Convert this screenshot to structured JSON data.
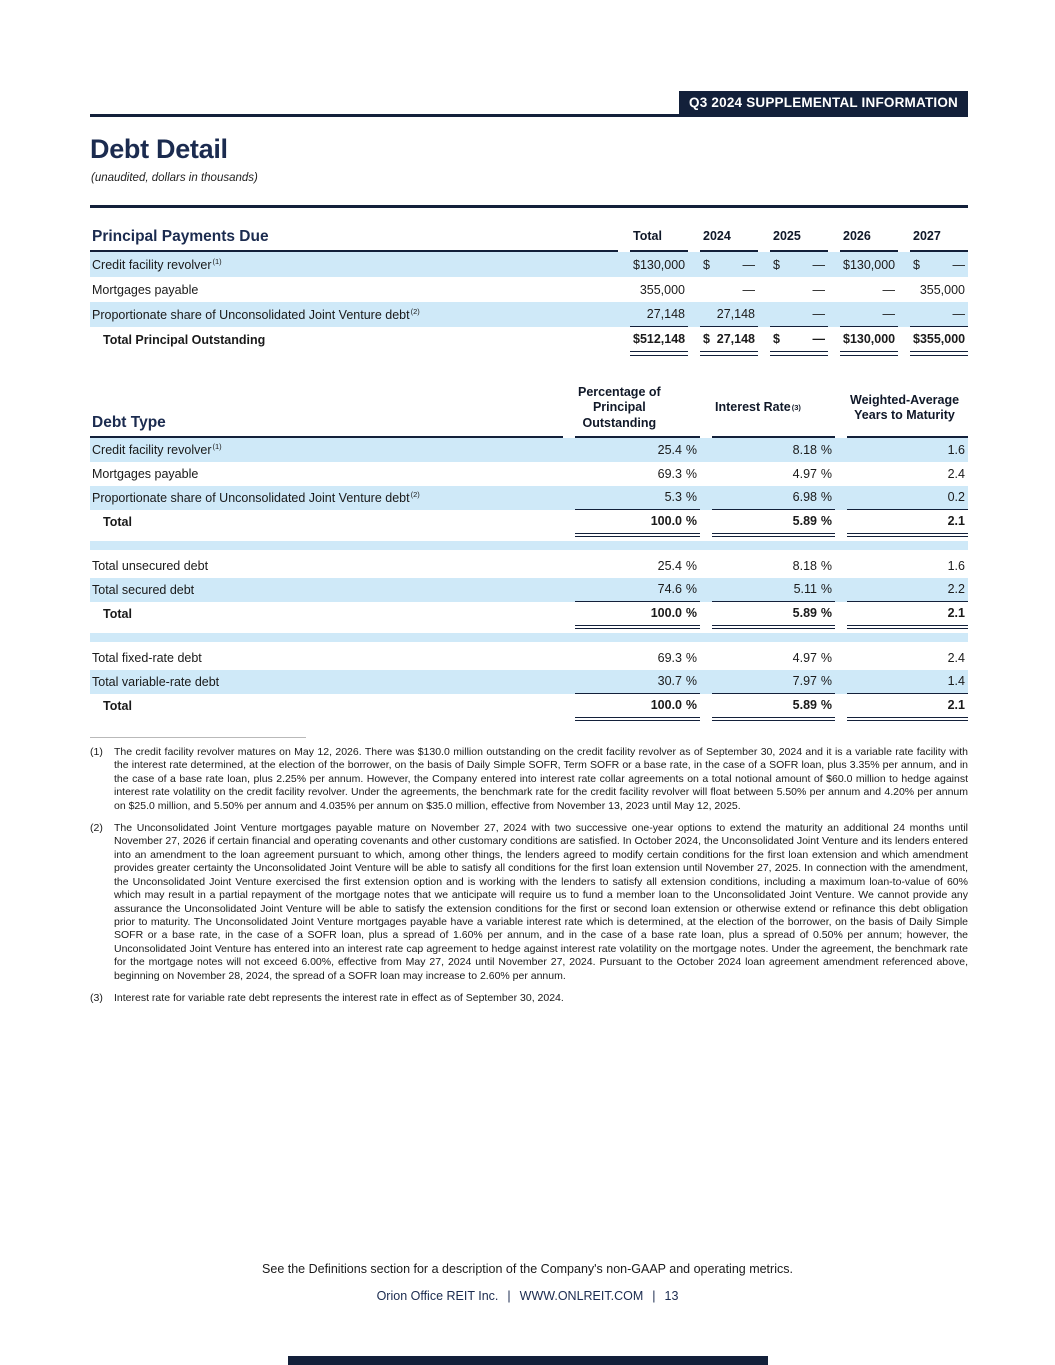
{
  "page": {
    "header_badge": "Q3 2024 SUPPLEMENTAL INFORMATION",
    "title": "Debt Detail",
    "subtitle": "(unaudited, dollars in thousands)"
  },
  "principal_payments": {
    "title": "Principal Payments Due",
    "columns": [
      "Total",
      "2024",
      "2025",
      "2026",
      "2027"
    ],
    "rows": [
      {
        "label": "Credit facility revolver",
        "footnote": "(1)",
        "shaded": true,
        "cells": [
          [
            "$",
            "130,000"
          ],
          [
            "$",
            "—"
          ],
          [
            "$",
            "—"
          ],
          [
            "$",
            "130,000"
          ],
          [
            "$",
            "—"
          ]
        ]
      },
      {
        "label": "Mortgages payable",
        "footnote": "",
        "shaded": false,
        "cells": [
          [
            "",
            "355,000"
          ],
          [
            "",
            "—"
          ],
          [
            "",
            "—"
          ],
          [
            "",
            "—"
          ],
          [
            "",
            "355,000"
          ]
        ]
      },
      {
        "label": "Proportionate share of Unconsolidated Joint Venture debt",
        "footnote": "(2)",
        "shaded": true,
        "cells": [
          [
            "",
            "27,148"
          ],
          [
            "",
            "27,148"
          ],
          [
            "",
            "—"
          ],
          [
            "",
            "—"
          ],
          [
            "",
            "—"
          ]
        ]
      }
    ],
    "total_row": {
      "label": "Total Principal Outstanding",
      "cells": [
        [
          "$",
          "512,148"
        ],
        [
          "$",
          "27,148"
        ],
        [
          "$",
          "—"
        ],
        [
          "$",
          "130,000"
        ],
        [
          "$",
          "355,000"
        ]
      ]
    }
  },
  "debt_type": {
    "title": "Debt Type",
    "columns": [
      "Percentage of\nPrincipal\nOutstanding",
      "Interest Rate",
      "Weighted-Average\nYears to Maturity"
    ],
    "interest_rate_sup": "(3)",
    "sections": [
      {
        "rows": [
          {
            "label": "Credit facility revolver",
            "sup": "(1)",
            "pct": "25.4",
            "rate": "8.18",
            "years": "1.6",
            "shaded": true
          },
          {
            "label": "Mortgages payable",
            "sup": "",
            "pct": "69.3",
            "rate": "4.97",
            "years": "2.4",
            "shaded": false
          },
          {
            "label": "Proportionate share of Unconsolidated Joint Venture debt",
            "sup": "(2)",
            "pct": "5.3",
            "rate": "6.98",
            "years": "0.2",
            "shaded": true
          }
        ],
        "total": {
          "label": "Total",
          "pct": "100.0",
          "rate": "5.89",
          "years": "2.1"
        }
      },
      {
        "rows": [
          {
            "label": "Total unsecured debt",
            "sup": "",
            "pct": "25.4",
            "rate": "8.18",
            "years": "1.6",
            "shaded": false
          },
          {
            "label": "Total secured debt",
            "sup": "",
            "pct": "74.6",
            "rate": "5.11",
            "years": "2.2",
            "shaded": true
          }
        ],
        "total": {
          "label": "Total",
          "pct": "100.0",
          "rate": "5.89",
          "years": "2.1"
        }
      },
      {
        "rows": [
          {
            "label": "Total fixed-rate debt",
            "sup": "",
            "pct": "69.3",
            "rate": "4.97",
            "years": "2.4",
            "shaded": false
          },
          {
            "label": "Total variable-rate debt",
            "sup": "",
            "pct": "30.7",
            "rate": "7.97",
            "years": "1.4",
            "shaded": true
          }
        ],
        "total": {
          "label": "Total",
          "pct": "100.0",
          "rate": "5.89",
          "years": "2.1"
        }
      }
    ],
    "percent_sign": "%"
  },
  "footnotes": [
    {
      "marker": "(1)",
      "text": "The credit facility revolver matures on May 12, 2026. There was $130.0 million outstanding on the credit facility revolver as of September 30, 2024 and it is a variable rate facility with the interest rate determined, at the election of the borrower, on the basis of Daily Simple SOFR, Term SOFR or a base rate, in the case of a SOFR loan, plus 3.35% per annum, and in the case of a base rate loan, plus 2.25% per annum. However, the Company entered into interest rate collar agreements on a total notional amount of $60.0 million to hedge against interest rate volatility on the credit facility revolver. Under the agreements, the benchmark rate for the credit facility revolver will float between 5.50% per annum and 4.20% per annum on $25.0 million, and 5.50% per annum and 4.035% per annum on $35.0 million, effective from November 13, 2023 until May 12, 2025."
    },
    {
      "marker": "(2)",
      "text": "The Unconsolidated Joint Venture mortgages payable mature on November 27, 2024 with two successive one-year options to extend the maturity an additional 24 months until November 27, 2026 if certain financial and operating covenants and other customary conditions are satisfied. In October 2024, the Unconsolidated Joint Venture and its lenders entered into an amendment to the loan agreement pursuant to which, among other things, the lenders agreed to modify certain conditions for the first loan extension and which amendment provides greater certainty the Unconsolidated Joint Venture will be able to satisfy all conditions for the first loan extension until November 27, 2025. In connection with the amendment, the Unconsolidated Joint Venture exercised the first extension option and is working with the lenders to satisfy all extension conditions, including a maximum loan-to-value of 60% which may result in a partial repayment of the mortgage notes that we anticipate will require us to fund a member loan to the Unconsolidated Joint Venture. We cannot provide any assurance the Unconsolidated Joint Venture will be able to satisfy the extension conditions for the first or second loan extension or otherwise extend or refinance this debt obligation prior to maturity. The Unconsolidated Joint Venture mortgages payable have a variable interest rate which is determined, at the election of the borrower, on the basis of Daily Simple SOFR or a base rate, in the case of a SOFR loan, plus a spread of 1.60% per annum, and in the case of a base rate loan, plus a spread of 0.50% per annum; however, the Unconsolidated Joint Venture has entered into an interest rate cap agreement to hedge against interest rate volatility on the mortgage notes. Under the agreement, the benchmark rate for the mortgage notes will not exceed 6.00%, effective from May 27, 2024 until November 27, 2024. Pursuant to the October 2024 loan agreement amendment referenced above, beginning on November 28, 2024, the spread of a SOFR loan may increase to 2.60% per annum."
    },
    {
      "marker": "(3)",
      "text": "Interest rate for variable rate debt represents the interest rate in effect as of September 30, 2024."
    }
  ],
  "footer": {
    "definitions_note": "See the Definitions section for a description of the Company's non-GAAP and operating metrics.",
    "company": "Orion Office REIT Inc.",
    "website": "WWW.ONLREIT.COM",
    "page_number": "13",
    "separator": "|"
  },
  "colors": {
    "navy": "#13203a",
    "row_blue": "#cfe9f8"
  }
}
